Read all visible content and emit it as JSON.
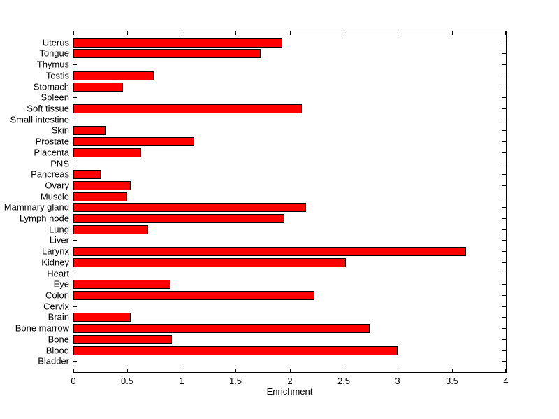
{
  "window": {
    "background_color": "#ffffff"
  },
  "chart_data": {
    "type": "bar",
    "orientation": "horizontal",
    "title": "",
    "xlabel": "Enrichment",
    "ylabel": "",
    "xlim": [
      0,
      4
    ],
    "x_ticks": [
      0,
      0.5,
      1,
      1.5,
      2,
      2.5,
      3,
      3.5,
      4
    ],
    "x_tick_labels": [
      "0",
      "0.5",
      "1",
      "1.5",
      "2",
      "2.5",
      "3",
      "3.5",
      "4"
    ],
    "grid": false,
    "legend": false,
    "box": true,
    "bar_color": "#ff0000",
    "bar_edge_color": "#000000",
    "axis_color": "#000000",
    "text_color": "#000000",
    "categories_top_to_bottom": [
      "Uterus",
      "Tongue",
      "Thymus",
      "Testis",
      "Stomach",
      "Spleen",
      "Soft tissue",
      "Small intestine",
      "Skin",
      "Prostate",
      "Placenta",
      "PNS",
      "Pancreas",
      "Ovary",
      "Muscle",
      "Mammary gland",
      "Lymph node",
      "Lung",
      "Liver",
      "Larynx",
      "Kidney",
      "Heart",
      "Eye",
      "Colon",
      "Cervix",
      "Brain",
      "Bone marrow",
      "Bone",
      "Blood",
      "Bladder"
    ],
    "values": [
      1.93,
      1.73,
      0,
      0.74,
      0.46,
      0,
      2.11,
      0,
      0.3,
      1.12,
      0.63,
      0,
      0.25,
      0.53,
      0.5,
      2.15,
      1.95,
      0.69,
      0,
      3.63,
      2.52,
      0,
      0.9,
      2.23,
      0,
      0.53,
      2.74,
      0.91,
      3.0,
      0
    ]
  }
}
